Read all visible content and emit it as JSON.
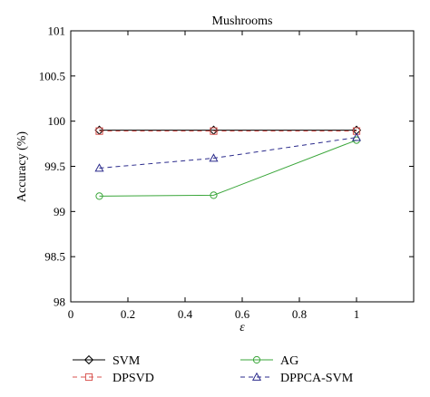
{
  "chart_data": {
    "type": "line",
    "title": "Mushrooms",
    "xlabel": "ε",
    "ylabel": "Accuracy (%)",
    "xlim": [
      0,
      1.2
    ],
    "ylim": [
      98,
      101
    ],
    "xticks": [
      "0",
      "0.2",
      "0.4",
      "0.6",
      "0.8",
      "1"
    ],
    "yticks": [
      "98",
      "98.5",
      "99",
      "99.5",
      "100",
      "100.5",
      "101"
    ],
    "grid": false,
    "legend_position": "bottom",
    "series": [
      {
        "name": "SVM",
        "marker": "diamond",
        "dash": "solid",
        "color": "#000000",
        "x": [
          0.1,
          0.5,
          1.0
        ],
        "y": [
          99.9,
          99.9,
          99.9
        ]
      },
      {
        "name": "DPSVD",
        "marker": "square",
        "dash": "dashed",
        "color": "#d9534f",
        "x": [
          0.1,
          0.5,
          1.0
        ],
        "y": [
          99.89,
          99.89,
          99.89
        ]
      },
      {
        "name": "AG",
        "marker": "circle",
        "dash": "solid",
        "color": "#3aa63a",
        "x": [
          0.1,
          0.5,
          1.0
        ],
        "y": [
          99.17,
          99.18,
          99.79
        ]
      },
      {
        "name": "DPPCA-SVM",
        "marker": "triangle",
        "dash": "dashed",
        "color": "#2b2b8c",
        "x": [
          0.1,
          0.5,
          1.0
        ],
        "y": [
          99.48,
          99.59,
          99.82
        ]
      }
    ]
  }
}
